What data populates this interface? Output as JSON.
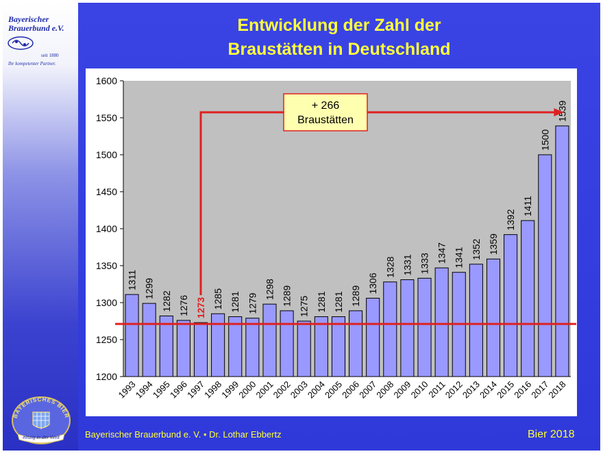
{
  "slide": {
    "title_line1": "Entwicklung der Zahl der",
    "title_line2": "Braustätten in Deutschland",
    "footer_left": "Bayerischer Brauerbund e. V. • Dr. Lothar Ebbertz",
    "footer_right": "Bier 2018",
    "logo": {
      "line1": "Bayerischer",
      "line2": "Brauerbund e.V.",
      "seit": "seit 1880",
      "claim": "Ihr kompetenter Partner.",
      "seal_top": "BAYERISCHES BIER",
      "seal_bottom": "einzig in der Welt"
    },
    "colors": {
      "title": "#ffff3c",
      "bar": "#9999ff",
      "plot_bg": "#c0c0c0",
      "accent": "#e02020",
      "background": "#2f39d9"
    }
  },
  "chart_data": {
    "type": "bar",
    "categories": [
      "1993",
      "1994",
      "1995",
      "1996",
      "1997",
      "1998",
      "1999",
      "2000",
      "2001",
      "2002",
      "2003",
      "2004",
      "2005",
      "2006",
      "2007",
      "2008",
      "2009",
      "2010",
      "2011",
      "2012",
      "2013",
      "2014",
      "2015",
      "2016",
      "2017",
      "2018"
    ],
    "values": [
      1311,
      1299,
      1282,
      1276,
      1273,
      1285,
      1281,
      1279,
      1298,
      1289,
      1275,
      1281,
      1281,
      1289,
      1306,
      1328,
      1331,
      1333,
      1347,
      1341,
      1352,
      1359,
      1392,
      1411,
      1500,
      1539
    ],
    "ylim": [
      1200,
      1600
    ],
    "yticks": [
      1200,
      1250,
      1300,
      1350,
      1400,
      1450,
      1500,
      1550,
      1600
    ],
    "grid": false,
    "highlight_category": "1997",
    "reference_line_value": 1273,
    "annotation": {
      "line1": "+ 266",
      "line2": "Braustätten",
      "from": "1997",
      "to": "2018"
    }
  }
}
